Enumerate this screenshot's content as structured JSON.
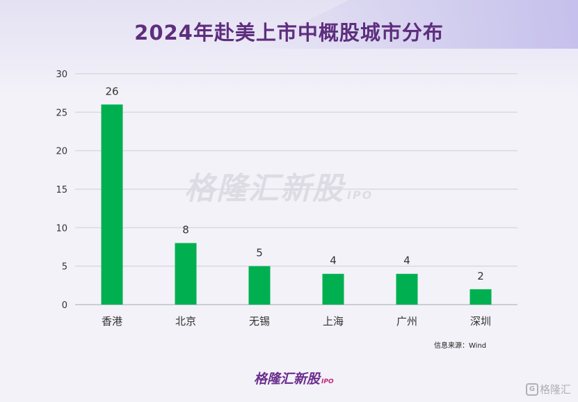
{
  "title": "2024年赴美上市中概股城市分布",
  "watermark": {
    "main": "格隆汇新股",
    "sub": "IPO"
  },
  "source": "信息来源：Wind",
  "logo": {
    "main": "格隆汇新股",
    "sub": "IPO"
  },
  "corner_badge": {
    "icon": "G",
    "text": "格隆汇"
  },
  "chart_data": {
    "type": "bar",
    "title": "2024年赴美上市中概股城市分布",
    "categories": [
      "香港",
      "北京",
      "无锡",
      "上海",
      "广州",
      "深圳"
    ],
    "values": [
      26,
      8,
      5,
      4,
      4,
      2
    ],
    "data_labels": [
      "26",
      "8",
      "5",
      "4",
      "4",
      "2"
    ],
    "xlabel": "",
    "ylabel": "",
    "ylim": [
      0,
      30
    ],
    "yticks": [
      0,
      5,
      10,
      15,
      20,
      25,
      30
    ],
    "grid": true,
    "legend": "none",
    "bar_color": "#00b050",
    "grid_color": "#d9d9e3"
  }
}
